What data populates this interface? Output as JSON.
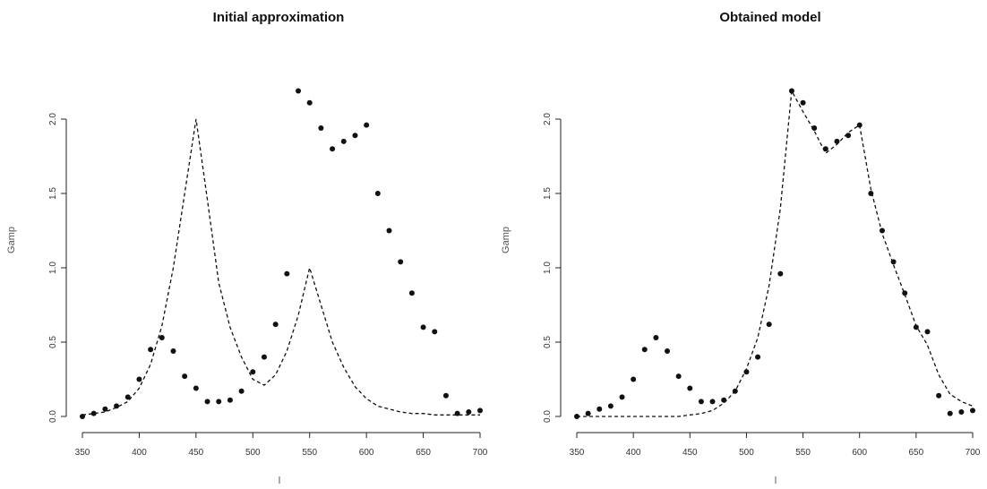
{
  "chart_data": [
    {
      "type": "scatter",
      "title": "Initial approximation",
      "xlabel": "l",
      "ylabel": "Gamp",
      "xlim": [
        350,
        700
      ],
      "ylim": [
        0.0,
        2.5
      ],
      "xticks": [
        350,
        400,
        450,
        500,
        550,
        600,
        650,
        700
      ],
      "yticks": [
        0.0,
        0.5,
        1.0,
        1.5,
        2.0
      ],
      "ytick_labels": [
        "0.0",
        "0.5",
        "1.0",
        "1.5",
        "2.0"
      ],
      "grid": false,
      "series": [
        {
          "style": "points",
          "x": [
            350,
            360,
            370,
            380,
            390,
            400,
            410,
            420,
            430,
            440,
            450,
            460,
            470,
            480,
            490,
            500,
            510,
            520,
            530,
            540,
            550,
            560,
            570,
            580,
            590,
            600,
            610,
            620,
            630,
            640,
            650,
            660,
            670,
            680,
            690,
            700
          ],
          "y": [
            0.0,
            0.02,
            0.05,
            0.07,
            0.13,
            0.25,
            0.45,
            0.53,
            0.44,
            0.27,
            0.19,
            0.1,
            0.1,
            0.11,
            0.17,
            0.3,
            0.4,
            0.62,
            0.96,
            2.19,
            2.11,
            1.94,
            1.8,
            1.85,
            1.89,
            1.96,
            1.5,
            1.25,
            1.04,
            0.83,
            0.6,
            0.57,
            0.14,
            0.02,
            0.03,
            0.04
          ]
        },
        {
          "style": "dashed",
          "x": [
            350,
            360,
            370,
            380,
            390,
            400,
            410,
            420,
            430,
            440,
            450,
            460,
            470,
            480,
            490,
            500,
            510,
            520,
            530,
            540,
            550,
            560,
            570,
            580,
            590,
            600,
            610,
            620,
            630,
            640,
            650,
            660,
            670,
            680,
            690,
            700
          ],
          "y": [
            0.01,
            0.02,
            0.03,
            0.06,
            0.1,
            0.19,
            0.35,
            0.61,
            1.0,
            1.5,
            2.0,
            1.46,
            0.9,
            0.6,
            0.4,
            0.25,
            0.21,
            0.28,
            0.44,
            0.68,
            1.0,
            0.75,
            0.5,
            0.33,
            0.2,
            0.12,
            0.07,
            0.05,
            0.03,
            0.02,
            0.02,
            0.01,
            0.01,
            0.01,
            0.01,
            0.01
          ]
        }
      ]
    },
    {
      "type": "scatter",
      "title": "Obtained model",
      "xlabel": "l",
      "ylabel": "Gamp",
      "xlim": [
        350,
        700
      ],
      "ylim": [
        0.0,
        2.5
      ],
      "xticks": [
        350,
        400,
        450,
        500,
        550,
        600,
        650,
        700
      ],
      "yticks": [
        0.0,
        0.5,
        1.0,
        1.5,
        2.0
      ],
      "ytick_labels": [
        "0.0",
        "0.5",
        "1.0",
        "1.5",
        "2.0"
      ],
      "grid": false,
      "series": [
        {
          "style": "points",
          "x": [
            350,
            360,
            370,
            380,
            390,
            400,
            410,
            420,
            430,
            440,
            450,
            460,
            470,
            480,
            490,
            500,
            510,
            520,
            530,
            540,
            550,
            560,
            570,
            580,
            590,
            600,
            610,
            620,
            630,
            640,
            650,
            660,
            670,
            680,
            690,
            700
          ],
          "y": [
            0.0,
            0.02,
            0.05,
            0.07,
            0.13,
            0.25,
            0.45,
            0.53,
            0.44,
            0.27,
            0.19,
            0.1,
            0.1,
            0.11,
            0.17,
            0.3,
            0.4,
            0.62,
            0.96,
            2.19,
            2.11,
            1.94,
            1.8,
            1.85,
            1.89,
            1.96,
            1.5,
            1.25,
            1.04,
            0.83,
            0.6,
            0.57,
            0.14,
            0.02,
            0.03,
            0.04
          ]
        },
        {
          "style": "dashed",
          "x": [
            350,
            360,
            370,
            380,
            390,
            400,
            410,
            420,
            430,
            440,
            450,
            460,
            470,
            480,
            490,
            500,
            510,
            520,
            530,
            540,
            550,
            560,
            570,
            580,
            590,
            600,
            610,
            620,
            630,
            640,
            650,
            660,
            670,
            680,
            690,
            700
          ],
          "y": [
            0.0,
            0.0,
            0.0,
            0.0,
            0.0,
            0.0,
            0.0,
            0.0,
            0.0,
            0.0,
            0.01,
            0.02,
            0.04,
            0.09,
            0.17,
            0.32,
            0.53,
            0.88,
            1.4,
            2.19,
            2.05,
            1.92,
            1.77,
            1.83,
            1.91,
            1.96,
            1.53,
            1.23,
            1.02,
            0.82,
            0.61,
            0.48,
            0.28,
            0.15,
            0.1,
            0.07
          ]
        }
      ]
    }
  ]
}
